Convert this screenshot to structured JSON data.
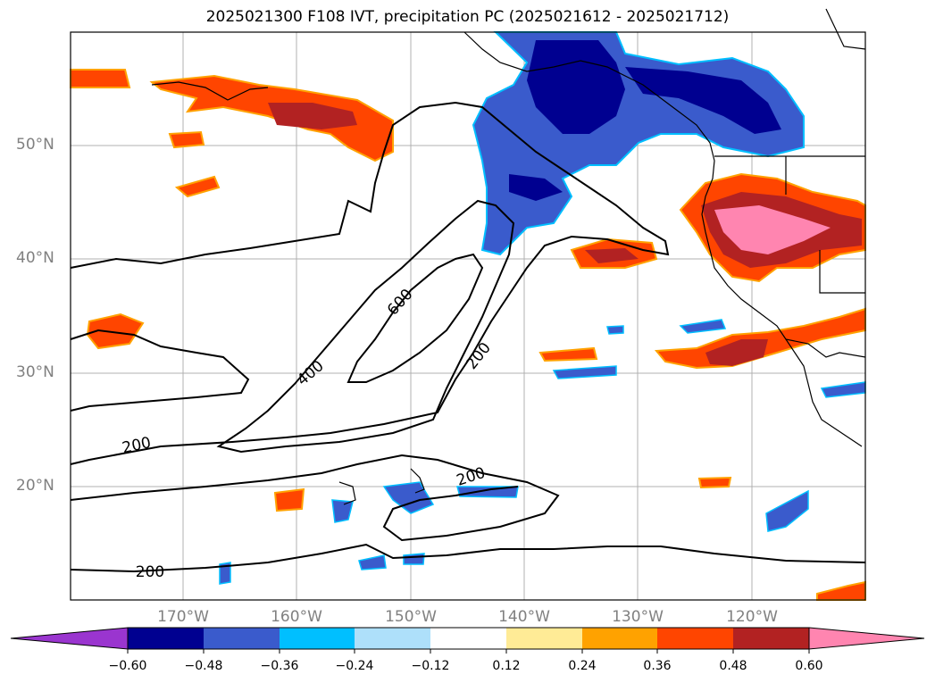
{
  "title": "2025021300 F108 IVT, precipitation PC (2025021612 - 2025021712)",
  "lat_labels": [
    "50°N",
    "40°N",
    "30°N",
    "20°N"
  ],
  "lon_labels": [
    "170°W",
    "160°W",
    "150°W",
    "140°W",
    "130°W",
    "120°W"
  ],
  "contour_labels": [
    "600",
    "400",
    "200",
    "200",
    "200",
    "200"
  ],
  "colorbar": {
    "tick_labels": [
      "−0.60",
      "−0.48",
      "−0.36",
      "−0.24",
      "−0.12",
      "0.12",
      "0.24",
      "0.36",
      "0.48",
      "0.60"
    ],
    "colors": [
      "#9a35cf",
      "#000090",
      "#3a5bcc",
      "#00bfff",
      "#aee0fa",
      "#ffffff",
      "#ffeb96",
      "#ffa200",
      "#ff4500",
      "#b22222",
      "#ff85b0"
    ]
  },
  "colors": {
    "land": "#ffffff",
    "gridline": "#b0b0b0",
    "contour": "#000000",
    "axis_labels": "#808080"
  }
}
